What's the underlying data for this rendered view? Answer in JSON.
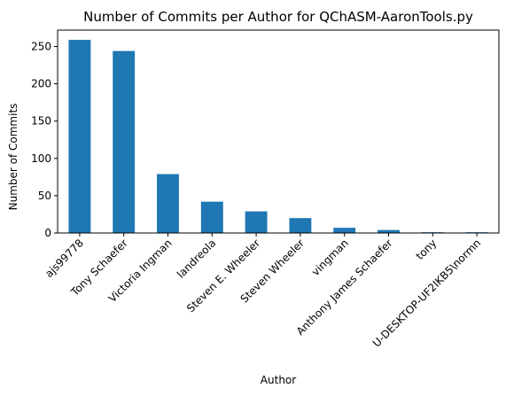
{
  "chart_data": {
    "type": "bar",
    "title": "Number of Commits per Author for QChASM-AaronTools.py",
    "xlabel": "Author",
    "ylabel": "Number of Commits",
    "categories": [
      "ajs99778",
      "Tony Schaefer",
      "Victoria Ingman",
      "landreola",
      "Steven E. Wheeler",
      "Steven Wheeler",
      "vingman",
      "Anthony James Schaefer",
      "tony",
      "U-DESKTOP-UF2IKB5\\normn"
    ],
    "values": [
      259,
      244,
      79,
      42,
      29,
      20,
      7,
      4,
      1,
      1
    ],
    "ylim": [
      0,
      272
    ],
    "yticks": [
      0,
      50,
      100,
      150,
      200,
      250
    ],
    "bar_color": "#1f77b4",
    "grid": false,
    "legend": "none"
  }
}
